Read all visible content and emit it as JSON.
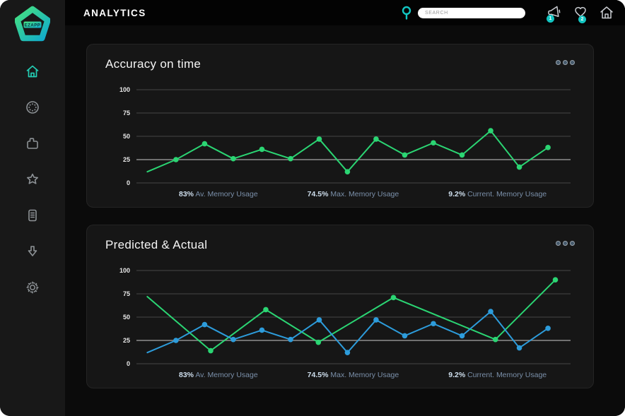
{
  "topbar": {
    "title": "ANALYTICS",
    "search_placeholder": "SEARCH",
    "megaphone_badge": "1",
    "heart_badge": "2"
  },
  "sidebar": {
    "logo_text": "EZAPP",
    "items": [
      {
        "id": "home",
        "icon": "home-icon",
        "active": true
      },
      {
        "id": "dial",
        "icon": "dial-icon",
        "active": false
      },
      {
        "id": "archive",
        "icon": "box-icon",
        "active": false
      },
      {
        "id": "favorites",
        "icon": "star-icon",
        "active": false
      },
      {
        "id": "notes",
        "icon": "document-icon",
        "active": false
      },
      {
        "id": "downloads",
        "icon": "download-arrow-icon",
        "active": false
      },
      {
        "id": "settings",
        "icon": "gear-icon",
        "active": false
      }
    ]
  },
  "stats": [
    {
      "value": "83%",
      "label": "Av. Memory Usage"
    },
    {
      "value": "74.5%",
      "label": "Max. Memory Usage"
    },
    {
      "value": "9.2%",
      "label": "Current. Memory Usage"
    }
  ],
  "colors": {
    "accent_teal": "#12C5C2",
    "line_green": "#2BD573",
    "line_blue": "#2D9CDB",
    "grid": "#474747",
    "grid_emphasis": "#8d8d8d"
  },
  "chart_data": [
    {
      "type": "line",
      "title": "Accuracy on time",
      "ylim": [
        0,
        100
      ],
      "yticks": [
        0,
        25,
        50,
        75,
        100
      ],
      "grid": true,
      "legend": "none",
      "emphasized_gridline": 25,
      "annotations": [
        "83% Av. Memory Usage",
        "74.5% Max. Memory Usage",
        "9.2% Current. Memory Usage"
      ],
      "series": [
        {
          "name": "Accuracy",
          "color": "#2BD573",
          "x_pct": [
            2.5,
            9.1,
            15.7,
            22.3,
            28.9,
            35.5,
            42.1,
            48.6,
            55.2,
            61.8,
            68.4,
            75.0,
            81.6,
            88.2,
            94.8
          ],
          "values": [
            12,
            25,
            42,
            26,
            36,
            26,
            47,
            12,
            47,
            30,
            43,
            30,
            56,
            17,
            38
          ]
        }
      ]
    },
    {
      "type": "line",
      "title": "Predicted & Actual",
      "ylim": [
        0,
        100
      ],
      "yticks": [
        0,
        25,
        50,
        75,
        100
      ],
      "grid": true,
      "legend": "none",
      "emphasized_gridline": 25,
      "annotations": [
        "83% Av. Memory Usage",
        "74.5% Max. Memory Usage",
        "9.2% Current. Memory Usage"
      ],
      "series": [
        {
          "name": "Predicted",
          "color": "#2BD573",
          "x_pct": [
            2.5,
            17.1,
            29.8,
            41.9,
            59.2,
            82.7,
            96.5
          ],
          "values": [
            72,
            14,
            58,
            23,
            71,
            26,
            90
          ]
        },
        {
          "name": "Actual",
          "color": "#2D9CDB",
          "x_pct": [
            2.5,
            9.1,
            15.7,
            22.3,
            28.9,
            35.5,
            42.1,
            48.6,
            55.2,
            61.8,
            68.4,
            75.0,
            81.6,
            88.2,
            94.8
          ],
          "values": [
            12,
            25,
            42,
            26,
            36,
            26,
            47,
            12,
            47,
            30,
            43,
            30,
            56,
            17,
            38
          ]
        }
      ]
    }
  ]
}
